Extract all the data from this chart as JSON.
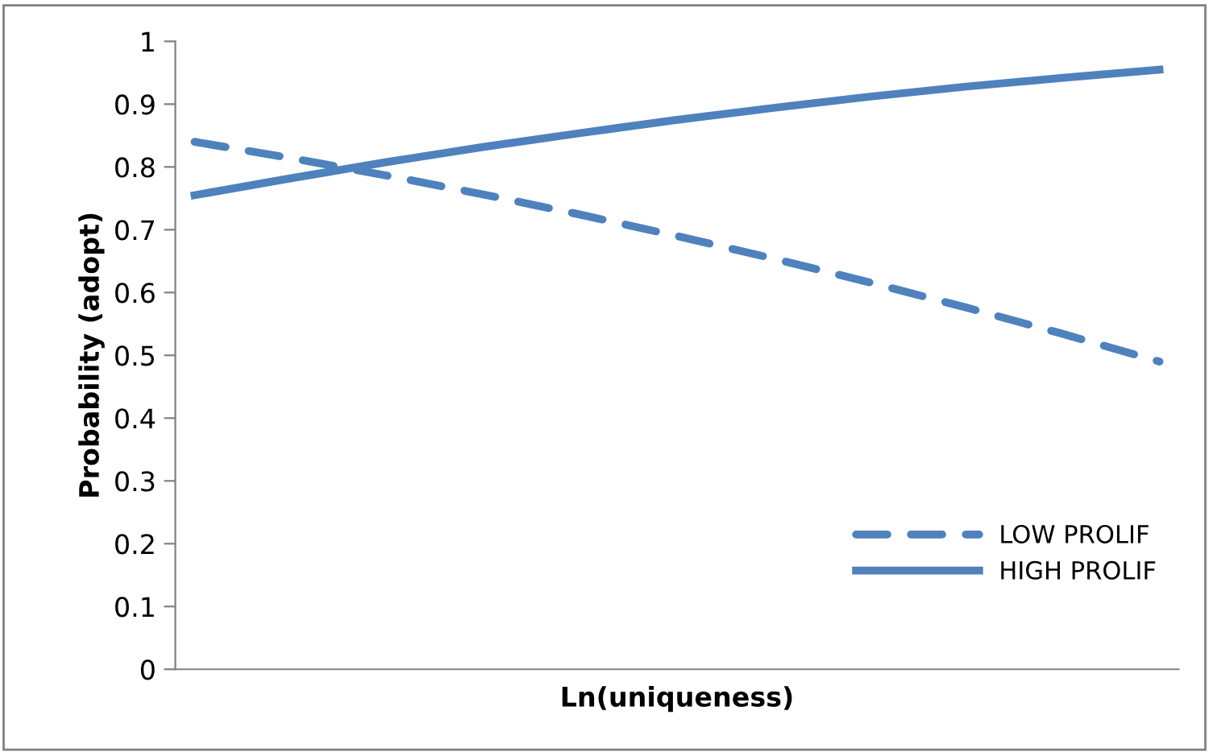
{
  "chart_data": {
    "type": "line",
    "xlabel": "Ln(uniqueness)",
    "ylabel": "Probability (adopt)",
    "categories": [
      null,
      null,
      null,
      null,
      null,
      null,
      null,
      null,
      null,
      null,
      null
    ],
    "series": [
      {
        "name": "LOW PROLIF",
        "color": "#4f81bd",
        "line_style": "dashed",
        "values": [
          0.84,
          0.814,
          0.786,
          0.756,
          0.724,
          0.69,
          0.654,
          0.616,
          0.576,
          0.534,
          0.49
        ]
      },
      {
        "name": "HIGH PROLIF",
        "color": "#4f81bd",
        "line_style": "solid",
        "values": [
          0.755,
          0.782,
          0.808,
          0.832,
          0.854,
          0.875,
          0.894,
          0.912,
          0.928,
          0.942,
          0.955
        ]
      }
    ],
    "ylim": [
      0,
      1
    ],
    "yticks": [
      0,
      0.1,
      0.2,
      0.3,
      0.4,
      0.5,
      0.6,
      0.7,
      0.8,
      0.9,
      1
    ],
    "grid": false,
    "legend": "bottom right",
    "marker": "none"
  }
}
